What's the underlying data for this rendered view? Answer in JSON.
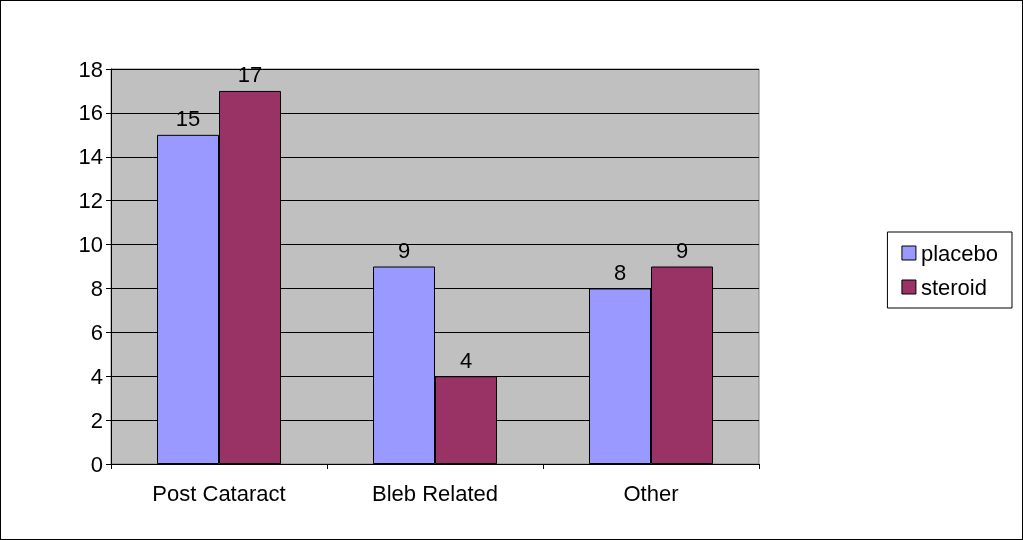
{
  "chart_data": {
    "type": "bar",
    "categories": [
      "Post Cataract",
      "Bleb Related",
      "Other"
    ],
    "series": [
      {
        "name": "placebo",
        "color": "#9999ff",
        "values": [
          15,
          9,
          8
        ]
      },
      {
        "name": "steroid",
        "color": "#993366",
        "values": [
          17,
          4,
          9
        ]
      }
    ],
    "ylim": [
      0,
      18
    ],
    "yticks": [
      0,
      2,
      4,
      6,
      8,
      10,
      12,
      14,
      16,
      18
    ],
    "grid": "y",
    "legend": "right",
    "data_labels": true
  }
}
